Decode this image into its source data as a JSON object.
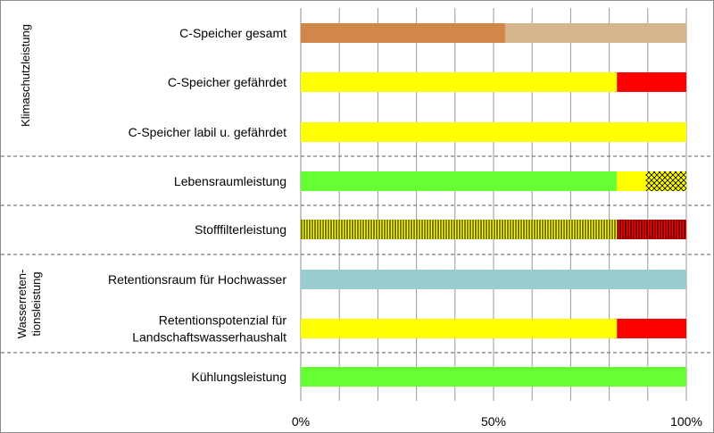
{
  "chart_data": {
    "type": "bar",
    "orientation": "horizontal",
    "stacked": true,
    "x_unit": "percent",
    "xlim": [
      0,
      100
    ],
    "x_ticks": [
      "0%",
      "50%",
      "100%"
    ],
    "grid": true,
    "legend": "none",
    "groups": [
      {
        "label": "Klimaschutzleistung",
        "rows": [
          0,
          1,
          2
        ]
      },
      {
        "label": "",
        "rows": [
          3
        ]
      },
      {
        "label": "",
        "rows": [
          4
        ]
      },
      {
        "label_lines": [
          "Wasserreten-",
          "tionsleistung"
        ],
        "rows": [
          5,
          6
        ]
      },
      {
        "label": "",
        "rows": [
          7
        ]
      }
    ],
    "categories": [
      {
        "lines": [
          "C-Speicher gesamt"
        ],
        "segments": [
          {
            "value": 53,
            "color": "#d2874a",
            "pattern": "none"
          },
          {
            "value": 47,
            "color": "#d6b48c",
            "pattern": "none"
          }
        ]
      },
      {
        "lines": [
          "C-Speicher gefährdet"
        ],
        "segments": [
          {
            "value": 82,
            "color": "#ffff00",
            "pattern": "none"
          },
          {
            "value": 18,
            "color": "#ff0000",
            "pattern": "none"
          }
        ]
      },
      {
        "lines": [
          "C-Speicher labil u. gefährdet"
        ],
        "segments": [
          {
            "value": 100,
            "color": "#ffff00",
            "pattern": "none"
          }
        ]
      },
      {
        "lines": [
          "Lebensraumleistung"
        ],
        "segments": [
          {
            "value": 82,
            "color": "#66ff33",
            "pattern": "none"
          },
          {
            "value": 7.5,
            "color": "#ffff00",
            "pattern": "none"
          },
          {
            "value": 10.5,
            "color": "#ffff00",
            "pattern": "crosshatch"
          }
        ]
      },
      {
        "lines": [
          "Stofffilterleistung"
        ],
        "segments": [
          {
            "value": 82,
            "color": "#ffff00",
            "pattern": "vertical-lines"
          },
          {
            "value": 18,
            "color": "#ff0000",
            "pattern": "vertical-lines"
          }
        ]
      },
      {
        "lines": [
          "Retentionsraum für Hochwasser"
        ],
        "segments": [
          {
            "value": 100,
            "color": "#99cccc",
            "pattern": "none"
          }
        ]
      },
      {
        "lines": [
          "Retentionspotenzial für",
          "Landschaftswasserhaushalt"
        ],
        "segments": [
          {
            "value": 82,
            "color": "#ffff00",
            "pattern": "none"
          },
          {
            "value": 18,
            "color": "#ff0000",
            "pattern": "none"
          }
        ]
      },
      {
        "lines": [
          "Kühlungsleistung"
        ],
        "segments": [
          {
            "value": 100,
            "color": "#66ff33",
            "pattern": "none"
          }
        ]
      }
    ]
  }
}
